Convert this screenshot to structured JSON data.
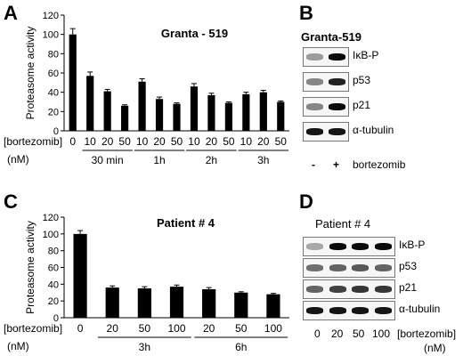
{
  "panels": {
    "a": {
      "letter": "A"
    },
    "b": {
      "letter": "B",
      "title": "Granta-519",
      "signs": [
        "-",
        "+"
      ],
      "treatment": "bortezomib",
      "rows": [
        {
          "label": "IκB-P",
          "intensity": [
            0.35,
            1.0
          ]
        },
        {
          "label": "p53",
          "intensity": [
            0.45,
            0.9
          ]
        },
        {
          "label": "p21",
          "intensity": [
            0.45,
            1.0
          ]
        },
        {
          "label": "α-tubulin",
          "intensity": [
            0.95,
            0.95
          ]
        }
      ]
    },
    "c": {
      "letter": "C"
    },
    "d": {
      "letter": "D",
      "title": "Patient # 4",
      "lane_labels": [
        "0",
        "20",
        "50",
        "100"
      ],
      "drug": "[bortezomib]",
      "unit": "(nM)",
      "rows": [
        {
          "label": "IκB-P",
          "intensity": [
            0.3,
            1.0,
            1.0,
            1.0
          ]
        },
        {
          "label": "p53",
          "intensity": [
            0.55,
            0.6,
            0.65,
            0.6
          ]
        },
        {
          "label": "p21",
          "intensity": [
            0.6,
            0.75,
            0.8,
            0.8
          ]
        },
        {
          "label": "α-tubulin",
          "intensity": [
            0.95,
            0.95,
            0.95,
            0.95
          ]
        }
      ]
    }
  },
  "chart_data": [
    {
      "type": "bar",
      "title": "Granta - 519",
      "ylabel": "Proteasome activity",
      "ylim": [
        0,
        120
      ],
      "yticks": [
        0,
        20,
        40,
        60,
        80,
        100,
        120
      ],
      "categories": [
        "0",
        "10",
        "20",
        "50",
        "10",
        "20",
        "50",
        "10",
        "20",
        "50",
        "10",
        "20",
        "50"
      ],
      "values": [
        100,
        57,
        41,
        26,
        51,
        33,
        28,
        46,
        37,
        29,
        38,
        40,
        30
      ],
      "errors": [
        6,
        4,
        2,
        1,
        3,
        2,
        1,
        3,
        2,
        1,
        2,
        2,
        1
      ],
      "groups": [
        {
          "label": "30 min",
          "members": [
            1,
            3
          ]
        },
        {
          "label": "1h",
          "members": [
            4,
            6
          ]
        },
        {
          "label": "2h",
          "members": [
            7,
            9
          ]
        },
        {
          "label": "3h",
          "members": [
            10,
            12
          ]
        }
      ],
      "xlabel_line1": "[bortezomib]",
      "xlabel_line2": "(nM)"
    },
    {
      "type": "bar",
      "title": "Patient # 4",
      "ylabel": "Proteasome activity",
      "ylim": [
        0,
        120
      ],
      "yticks": [
        0,
        20,
        40,
        60,
        80,
        100,
        120
      ],
      "categories": [
        "0",
        "20",
        "50",
        "100",
        "20",
        "50",
        "100"
      ],
      "values": [
        100,
        36,
        35,
        37,
        34,
        30,
        28
      ],
      "errors": [
        4,
        2,
        2,
        2,
        2,
        1,
        1
      ],
      "groups": [
        {
          "label": "3h",
          "members": [
            1,
            3
          ]
        },
        {
          "label": "6h",
          "members": [
            4,
            6
          ]
        }
      ],
      "xlabel_line1": "[bortezomib]",
      "xlabel_line2": "(nM)"
    }
  ]
}
